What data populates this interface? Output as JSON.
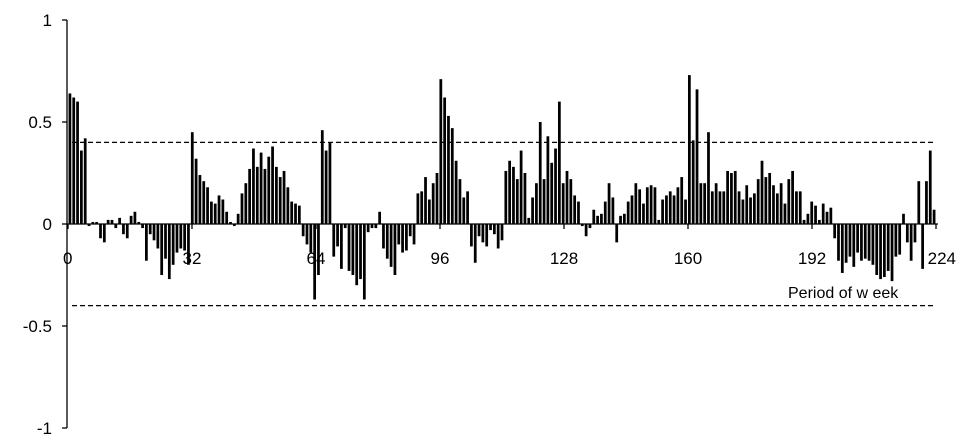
{
  "chart_data": {
    "type": "bar",
    "title": "",
    "xlabel": "Period of w eek",
    "ylabel": "",
    "xlim": [
      0,
      224
    ],
    "ylim": [
      -1,
      1
    ],
    "yticks": [
      {
        "value": 1,
        "label": "1"
      },
      {
        "value": 0.5,
        "label": "0.5"
      },
      {
        "value": 0,
        "label": "0"
      },
      {
        "value": -0.5,
        "label": "-0.5"
      },
      {
        "value": -1,
        "label": "-1"
      }
    ],
    "xticks": [
      {
        "value": 0,
        "label": "0"
      },
      {
        "value": 32,
        "label": "32"
      },
      {
        "value": 64,
        "label": "64"
      },
      {
        "value": 96,
        "label": "96"
      },
      {
        "value": 128,
        "label": "128"
      },
      {
        "value": 160,
        "label": "160"
      },
      {
        "value": 192,
        "label": "192"
      },
      {
        "value": 224,
        "label": "224"
      }
    ],
    "reference_lines": [
      0.4,
      -0.4
    ],
    "bar_color": "#000000",
    "values": [
      0.64,
      0.62,
      0.6,
      0.36,
      0.42,
      -0.01,
      0.01,
      0.01,
      -0.07,
      -0.09,
      0.02,
      0.02,
      -0.02,
      0.03,
      -0.05,
      -0.07,
      0.04,
      0.06,
      0.01,
      -0.02,
      -0.18,
      -0.05,
      -0.08,
      -0.12,
      -0.25,
      -0.17,
      -0.27,
      -0.2,
      -0.14,
      -0.12,
      -0.13,
      -0.2,
      0.45,
      0.32,
      0.24,
      0.21,
      0.18,
      0.11,
      0.1,
      0.14,
      0.12,
      0.06,
      0.01,
      -0.01,
      0.05,
      0.15,
      0.2,
      0.27,
      0.37,
      0.28,
      0.35,
      0.27,
      0.33,
      0.38,
      0.28,
      0.23,
      0.26,
      0.18,
      0.11,
      0.1,
      0.09,
      -0.06,
      -0.1,
      -0.14,
      -0.37,
      -0.25,
      0.46,
      0.36,
      0.4,
      -0.16,
      -0.11,
      -0.22,
      -0.02,
      -0.23,
      -0.25,
      -0.3,
      -0.27,
      -0.37,
      -0.04,
      -0.02,
      -0.02,
      0.06,
      -0.12,
      -0.17,
      -0.21,
      -0.25,
      -0.1,
      -0.14,
      -0.13,
      -0.06,
      -0.1,
      0.15,
      0.16,
      0.23,
      0.12,
      0.2,
      0.25,
      0.71,
      0.62,
      0.53,
      0.47,
      0.31,
      0.22,
      0.13,
      0.16,
      -0.11,
      -0.19,
      -0.06,
      -0.09,
      -0.11,
      -0.03,
      -0.05,
      -0.12,
      -0.08,
      0.26,
      0.31,
      0.28,
      0.22,
      0.36,
      0.25,
      0.03,
      0.13,
      0.2,
      0.5,
      0.22,
      0.43,
      0.3,
      0.37,
      0.6,
      0.2,
      0.26,
      0.22,
      0.14,
      0.11,
      -0.01,
      -0.06,
      -0.02,
      0.07,
      0.04,
      0.05,
      0.11,
      0.2,
      0.13,
      -0.09,
      0.04,
      0.05,
      0.11,
      0.14,
      0.2,
      0.17,
      0.1,
      0.18,
      0.19,
      0.18,
      0.02,
      0.12,
      0.14,
      0.16,
      0.14,
      0.18,
      0.23,
      0.12,
      0.73,
      0.41,
      0.66,
      0.2,
      0.2,
      0.45,
      0.16,
      0.2,
      0.16,
      0.16,
      0.26,
      0.25,
      0.26,
      0.16,
      0.12,
      0.19,
      0.13,
      0.15,
      0.22,
      0.31,
      0.23,
      0.25,
      0.19,
      0.15,
      0.2,
      0.1,
      0.22,
      0.26,
      0.16,
      0.16,
      0.02,
      0.05,
      0.11,
      0.09,
      0.02,
      0.1,
      0.06,
      0.08,
      -0.07,
      -0.18,
      -0.24,
      -0.19,
      -0.16,
      -0.21,
      -0.14,
      -0.18,
      -0.17,
      -0.18,
      -0.2,
      -0.25,
      -0.27,
      -0.26,
      -0.23,
      -0.28,
      -0.16,
      -0.15,
      0.05,
      -0.09,
      -0.18,
      -0.09,
      0.21,
      -0.22,
      0.21,
      0.36,
      0.07
    ]
  }
}
